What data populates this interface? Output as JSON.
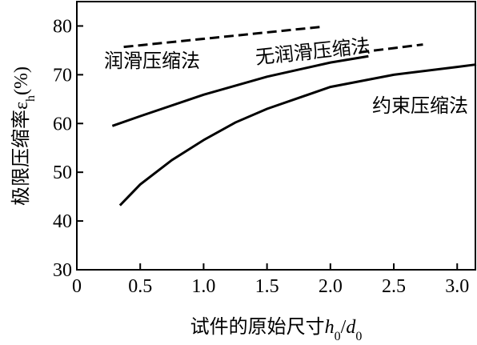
{
  "chart_data": {
    "type": "line",
    "x_label": [
      "试件的原始尺寸",
      "h",
      "0",
      "/",
      "d",
      "0"
    ],
    "y_label": [
      "极限压缩率ε",
      "h",
      "(%)"
    ],
    "xlim": [
      0,
      3.15
    ],
    "ylim": [
      30,
      85
    ],
    "xticks": [
      0,
      0.5,
      {
        "value": 1,
        "label": "1.0"
      },
      1.5,
      {
        "value": 2,
        "label": "2.0"
      },
      2.5,
      {
        "value": 3,
        "label": "3.0"
      }
    ],
    "yticks": [
      30,
      40,
      50,
      60,
      70,
      80
    ],
    "series": [
      {
        "name": "润滑压缩法",
        "color": "#000000",
        "dash": true,
        "x": [
          0.37,
          1.92
        ],
        "values": [
          75.7,
          79.8
        ]
      },
      {
        "color": "#000000",
        "dash": true,
        "x": [
          2.23,
          2.73
        ],
        "values": [
          74.6,
          76.2
        ]
      },
      {
        "name": "无润滑压缩法",
        "color": "#000000",
        "dash": false,
        "x": [
          0.28,
          0.5,
          1.0,
          1.5,
          2.0,
          2.3
        ],
        "values": [
          59.5,
          61.5,
          65.9,
          69.6,
          72.5,
          73.8
        ]
      },
      {
        "name": "约束压缩法",
        "color": "#000000",
        "dash": false,
        "x": [
          0.34,
          0.5,
          0.75,
          1.0,
          1.25,
          1.5,
          2.0,
          2.5,
          3.0,
          3.15
        ],
        "values": [
          43.2,
          47.5,
          52.5,
          56.6,
          60.2,
          63.0,
          67.5,
          70.0,
          71.6,
          72.1
        ]
      }
    ]
  }
}
